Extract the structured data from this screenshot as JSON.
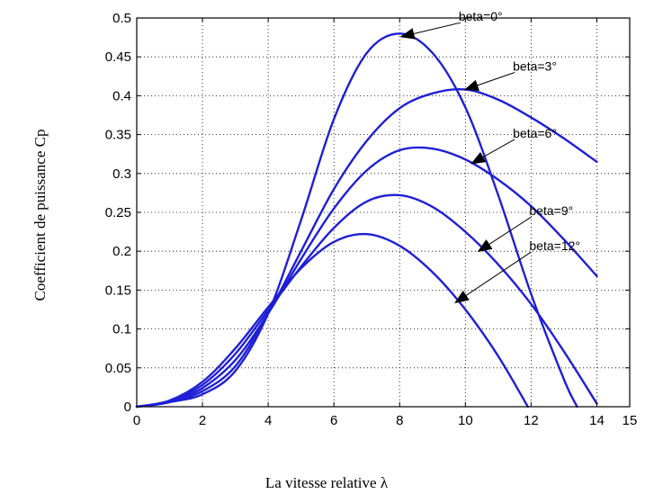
{
  "chart_data": {
    "type": "line",
    "xlabel": "La vitesse relative λ",
    "ylabel": "Coefficient de puissance Cp",
    "xlim": [
      0,
      15
    ],
    "ylim": [
      0,
      0.5
    ],
    "xticks": [
      "0",
      "2",
      "4",
      "6",
      "8",
      "10",
      "12",
      "14",
      "15"
    ],
    "xtick_values": [
      0,
      2,
      4,
      6,
      8,
      10,
      12,
      14,
      15
    ],
    "yticks": [
      "0",
      "0.05",
      "0.1",
      "0.15",
      "0.2",
      "0.25",
      "0.3",
      "0.35",
      "0.4",
      "0.45",
      "0.5"
    ],
    "ytick_values": [
      0,
      0.05,
      0.1,
      0.15,
      0.2,
      0.25,
      0.3,
      0.35,
      0.4,
      0.45,
      0.5
    ],
    "grid": true,
    "line_color": "#1f1fd6",
    "series": [
      {
        "x": [
          0,
          1,
          2,
          3,
          4,
          5,
          6,
          7,
          8,
          9,
          10,
          11,
          12,
          13,
          13.4
        ],
        "y": [
          0,
          0.006,
          0.016,
          0.046,
          0.12,
          0.24,
          0.37,
          0.455,
          0.48,
          0.455,
          0.385,
          0.272,
          0.145,
          0.035,
          0
        ]
      },
      {
        "x": [
          0,
          1,
          2,
          3,
          4,
          5,
          6,
          7,
          8,
          9,
          10,
          11,
          12,
          13,
          14
        ],
        "y": [
          0,
          0.006,
          0.02,
          0.052,
          0.12,
          0.2,
          0.28,
          0.342,
          0.384,
          0.403,
          0.408,
          0.395,
          0.372,
          0.345,
          0.315
        ]
      },
      {
        "x": [
          0,
          1,
          2,
          3,
          4,
          5,
          6,
          7,
          8,
          9,
          10,
          11,
          12,
          13,
          14
        ],
        "y": [
          0,
          0.006,
          0.024,
          0.06,
          0.12,
          0.19,
          0.255,
          0.304,
          0.33,
          0.332,
          0.318,
          0.292,
          0.258,
          0.215,
          0.168
        ]
      },
      {
        "x": [
          0,
          1,
          2,
          3,
          4,
          5,
          6,
          7,
          8,
          9,
          10,
          11,
          12,
          13,
          14
        ],
        "y": [
          0,
          0.007,
          0.028,
          0.068,
          0.124,
          0.18,
          0.23,
          0.264,
          0.272,
          0.257,
          0.225,
          0.183,
          0.132,
          0.071,
          0.004
        ]
      },
      {
        "x": [
          0,
          1,
          2,
          3,
          4,
          5,
          6,
          7,
          8,
          9,
          10,
          11,
          11.9
        ],
        "y": [
          0,
          0.008,
          0.032,
          0.075,
          0.128,
          0.178,
          0.212,
          0.222,
          0.207,
          0.173,
          0.125,
          0.065,
          0
        ]
      }
    ],
    "annotations": [
      {
        "text": "beta=0°",
        "xy": [
          8.05,
          0.476
        ],
        "xytext": [
          9.85,
          0.494
        ]
      },
      {
        "text": "beta=3°",
        "xy": [
          10.0,
          0.408
        ],
        "xytext": [
          11.5,
          0.43
        ]
      },
      {
        "text": "beta=6°",
        "xy": [
          10.2,
          0.313
        ],
        "xytext": [
          11.5,
          0.344
        ]
      },
      {
        "text": "beta=9°",
        "xy": [
          10.4,
          0.2
        ],
        "xytext": [
          12.0,
          0.244
        ]
      },
      {
        "text": "beta=12°",
        "xy": [
          9.7,
          0.134
        ],
        "xytext": [
          12.0,
          0.199
        ]
      }
    ]
  }
}
